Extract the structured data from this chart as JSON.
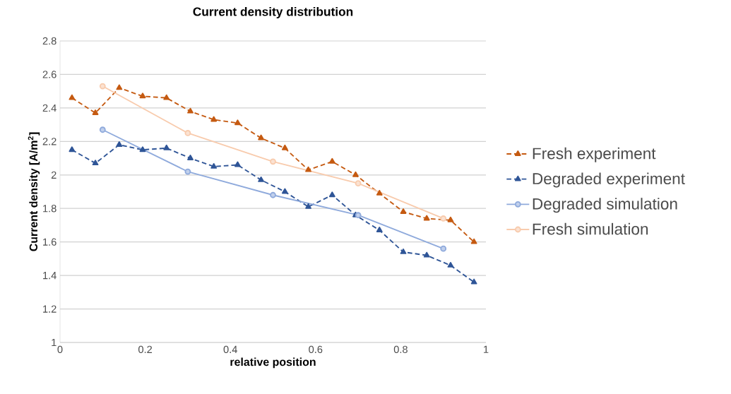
{
  "chart_data": {
    "type": "line",
    "title": "Current density distribution",
    "xlabel": "relative position",
    "ylabel": "Current density [A/m$^{2}$]",
    "xlim": [
      0,
      1
    ],
    "xticks": [
      0,
      0.2,
      0.4,
      0.6,
      0.8,
      1
    ],
    "ylim": [
      1,
      2.8
    ],
    "yticks": [
      1,
      1.2,
      1.4,
      1.6,
      1.8,
      2,
      2.2,
      2.4,
      2.6,
      2.8
    ],
    "grid": "y",
    "legend": "right",
    "series": [
      {
        "name": "Fresh experiment",
        "color": "#c55a11",
        "marker": "triangle",
        "line_style": "dashed",
        "x": [
          0.028,
          0.083,
          0.139,
          0.194,
          0.25,
          0.306,
          0.361,
          0.417,
          0.472,
          0.528,
          0.583,
          0.639,
          0.694,
          0.75,
          0.806,
          0.861,
          0.917,
          0.972
        ],
        "values": [
          2.46,
          2.37,
          2.52,
          2.47,
          2.46,
          2.38,
          2.33,
          2.31,
          2.22,
          2.16,
          2.03,
          2.08,
          2.0,
          1.89,
          1.78,
          1.74,
          1.73,
          1.6
        ]
      },
      {
        "name": "Degraded experiment",
        "color": "#2f5597",
        "marker": "triangle",
        "line_style": "dashed",
        "x": [
          0.028,
          0.083,
          0.139,
          0.194,
          0.25,
          0.306,
          0.361,
          0.417,
          0.472,
          0.528,
          0.583,
          0.639,
          0.694,
          0.75,
          0.806,
          0.861,
          0.917,
          0.972
        ],
        "values": [
          2.15,
          2.07,
          2.18,
          2.15,
          2.16,
          2.1,
          2.05,
          2.06,
          1.97,
          1.9,
          1.81,
          1.88,
          1.76,
          1.67,
          1.54,
          1.52,
          1.46,
          1.36
        ]
      },
      {
        "name": "Degraded simulation",
        "color": "#8faadc",
        "marker": "circle",
        "line_style": "solid",
        "x": [
          0.1,
          0.3,
          0.5,
          0.7,
          0.9
        ],
        "values": [
          2.27,
          2.02,
          1.88,
          1.76,
          1.56
        ]
      },
      {
        "name": "Fresh simulation",
        "color": "#f8cbad",
        "marker": "circle",
        "line_style": "solid",
        "x": [
          0.1,
          0.3,
          0.5,
          0.7,
          0.9
        ],
        "values": [
          2.53,
          2.25,
          2.08,
          1.95,
          1.74
        ]
      }
    ]
  }
}
